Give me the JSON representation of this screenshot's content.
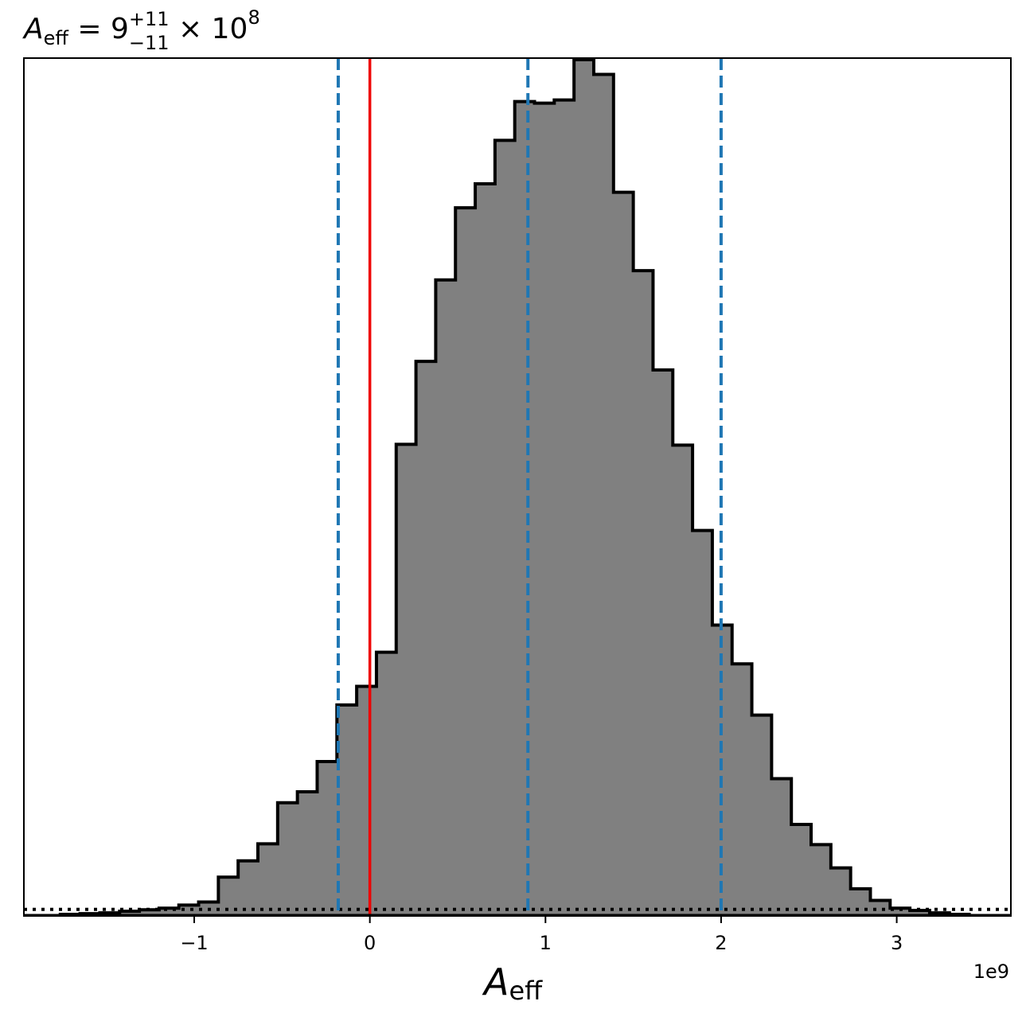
{
  "chart_data": {
    "type": "histogram",
    "title": {
      "symbol": "A",
      "symbol_sub": "eff",
      "equals": " = ",
      "value": "9",
      "upper": "+11",
      "lower": "−11",
      "times": " × 10",
      "exponent": "8"
    },
    "xlabel": {
      "symbol": "A",
      "sub": "eff"
    },
    "x_offset_label": "1e9",
    "xlim": [
      -1.97,
      3.65
    ],
    "xlim_units": "1e9",
    "ylim": [
      0,
      1.0
    ],
    "xticks": [
      {
        "value": -1,
        "label": "−1"
      },
      {
        "value": 0,
        "label": "0"
      },
      {
        "value": 1,
        "label": "1"
      },
      {
        "value": 2,
        "label": "2"
      },
      {
        "value": 3,
        "label": "3"
      }
    ],
    "bins": {
      "edges_start": -1.2,
      "bin_width": 0.1125,
      "heights": [
        0.01,
        0.014,
        0.018,
        0.05,
        0.071,
        0.093,
        0.146,
        0.16,
        0.199,
        0.272,
        0.296,
        0.34,
        0.608,
        0.715,
        0.82,
        0.913,
        0.944,
        1.0,
        1.05,
        1.048,
        1.052,
        1.104,
        1.085,
        0.933,
        0.832,
        0.704,
        0.607,
        0.497,
        0.375,
        0.325,
        0.259,
        0.177,
        0.118,
        0.092,
        0.062,
        0.035,
        0.02,
        0.01,
        0.007
      ],
      "note": ""
    },
    "tails": {
      "left_heights": [
        0.002,
        0.003,
        0.004,
        0.006,
        0.008
      ],
      "right_heights": [
        0.004,
        0.002
      ]
    },
    "lines": {
      "truth": {
        "x": 0.0,
        "color": "#ee0000",
        "style": "solid"
      },
      "median": {
        "x": 0.9,
        "color": "#1f77b4",
        "style": "dashed"
      },
      "lower": {
        "x": -0.18,
        "color": "#1f77b4",
        "style": "dashed"
      },
      "upper": {
        "x": 2.0,
        "color": "#1f77b4",
        "style": "dashed"
      },
      "prior": {
        "y": 0.0085,
        "color": "#000000",
        "style": "dotted"
      }
    },
    "colors": {
      "fill": "#808080",
      "edge": "#000000"
    }
  }
}
